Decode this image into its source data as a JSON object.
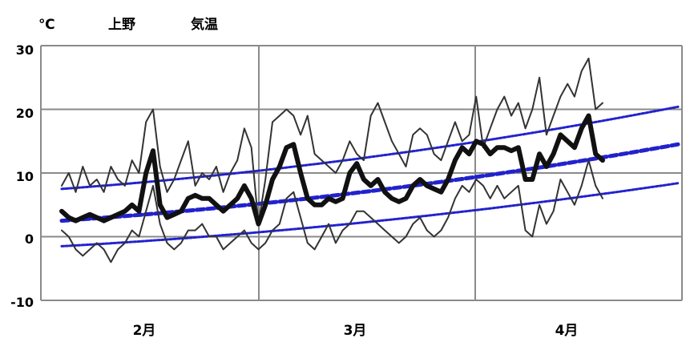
{
  "chart_data": {
    "type": "line",
    "title": "上野",
    "subtitle": "気温",
    "ylabel": "℃",
    "ylim": [
      -10,
      30
    ],
    "yticks": [
      "30",
      "20",
      "10",
      "0",
      "-10"
    ],
    "month_labels": [
      "2月",
      "3月",
      "4月"
    ],
    "grid": true,
    "series": [
      {
        "role": "daily-max",
        "color": "#333333",
        "values": [
          8,
          10,
          7,
          11,
          8,
          9,
          7,
          11,
          9,
          8,
          12,
          10,
          18,
          20,
          11,
          7,
          9,
          12,
          15,
          8,
          10,
          9,
          11,
          7,
          10,
          12,
          17,
          14,
          2,
          9,
          18,
          19,
          20,
          19,
          16,
          19,
          13,
          12,
          11,
          10,
          12,
          15,
          13,
          12,
          19,
          21,
          18,
          15,
          13,
          11,
          16,
          17,
          16,
          13,
          12,
          15,
          18,
          15,
          16,
          22,
          14,
          17,
          20,
          22,
          19,
          21,
          17,
          20,
          25,
          16,
          19,
          22,
          24,
          22,
          26,
          28,
          20,
          21
        ]
      },
      {
        "role": "daily-mean",
        "color": "#111111",
        "values": [
          4,
          3,
          2.5,
          3,
          3.5,
          3,
          2.5,
          3,
          3.5,
          4,
          5,
          4,
          10,
          13.5,
          5,
          3,
          3.5,
          4,
          6,
          6.5,
          6,
          6,
          5,
          4,
          5,
          6,
          8,
          6,
          2,
          5,
          9,
          11,
          14,
          14.5,
          10,
          6,
          5,
          5,
          6,
          5.5,
          6,
          10,
          11.5,
          9,
          8,
          9,
          7,
          6,
          5.5,
          6,
          8,
          9,
          8,
          7.5,
          7,
          9,
          12,
          14,
          13,
          15,
          14.5,
          13,
          14,
          14,
          13.5,
          14,
          9,
          9,
          13,
          11,
          13,
          16,
          15,
          14,
          17,
          19,
          13,
          12
        ]
      },
      {
        "role": "daily-min",
        "color": "#333333",
        "values": [
          1,
          0,
          -2,
          -3,
          -2,
          -1,
          -2,
          -4,
          -2,
          -1,
          1,
          0,
          4,
          8,
          2,
          -1,
          -2,
          -1,
          1,
          1,
          2,
          0,
          0,
          -2,
          -1,
          0,
          1,
          -1,
          -2,
          -1,
          1,
          2,
          6,
          7,
          3,
          -1,
          -2,
          0,
          2,
          -1,
          1,
          2,
          4,
          4,
          3,
          2,
          1,
          0,
          -1,
          0,
          2,
          3,
          1,
          0,
          1,
          3,
          6,
          8,
          7,
          9,
          8,
          6,
          8,
          6,
          7,
          8,
          1,
          0,
          5,
          2,
          4,
          9,
          7,
          5,
          8,
          12,
          8,
          6
        ]
      },
      {
        "role": "normal-max",
        "color": "#2222cc",
        "values": [
          7.5,
          20.4
        ],
        "dashed": true
      },
      {
        "role": "normal-mean",
        "color": "#2222cc",
        "values": [
          2.5,
          14.5
        ],
        "dashed": true
      },
      {
        "role": "normal-min",
        "color": "#2222cc",
        "values": [
          -1.5,
          8.4
        ],
        "dashed": true
      }
    ]
  }
}
